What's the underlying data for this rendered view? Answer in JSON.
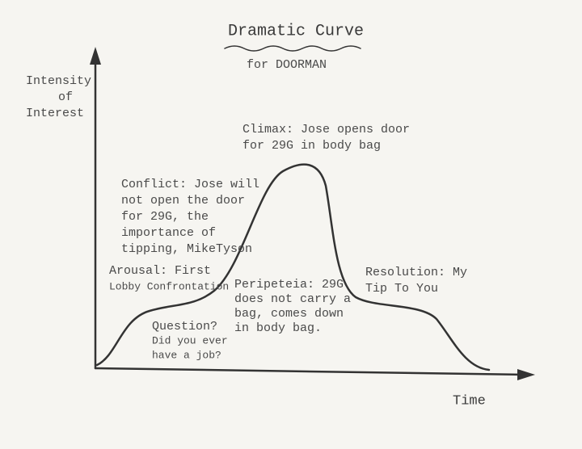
{
  "header": {
    "title": "Dramatic Curve",
    "subtitle": "for DOORMAN"
  },
  "axes": {
    "y_label": [
      "Intensity",
      "of",
      "Interest"
    ],
    "x_label": "Time"
  },
  "annotations": [
    {
      "lines": [
        "Climax: Jose opens door",
        "for 29G in body bag"
      ]
    },
    {
      "lines": [
        "Conflict: Jose will",
        "not open the door",
        "for 29G, the",
        "importance of",
        "tipping, MikeTyson"
      ]
    },
    {
      "lines": [
        "Arousal: First",
        "Lobby Confrontation"
      ]
    },
    {
      "lines": [
        "Peripeteia: 29G",
        "does not carry a",
        "bag, comes down",
        "in body bag."
      ]
    },
    {
      "lines": [
        "Question?",
        "Did you ever",
        "have a job?"
      ]
    },
    {
      "lines": [
        "Resolution: My",
        "Tip To You"
      ]
    }
  ]
}
